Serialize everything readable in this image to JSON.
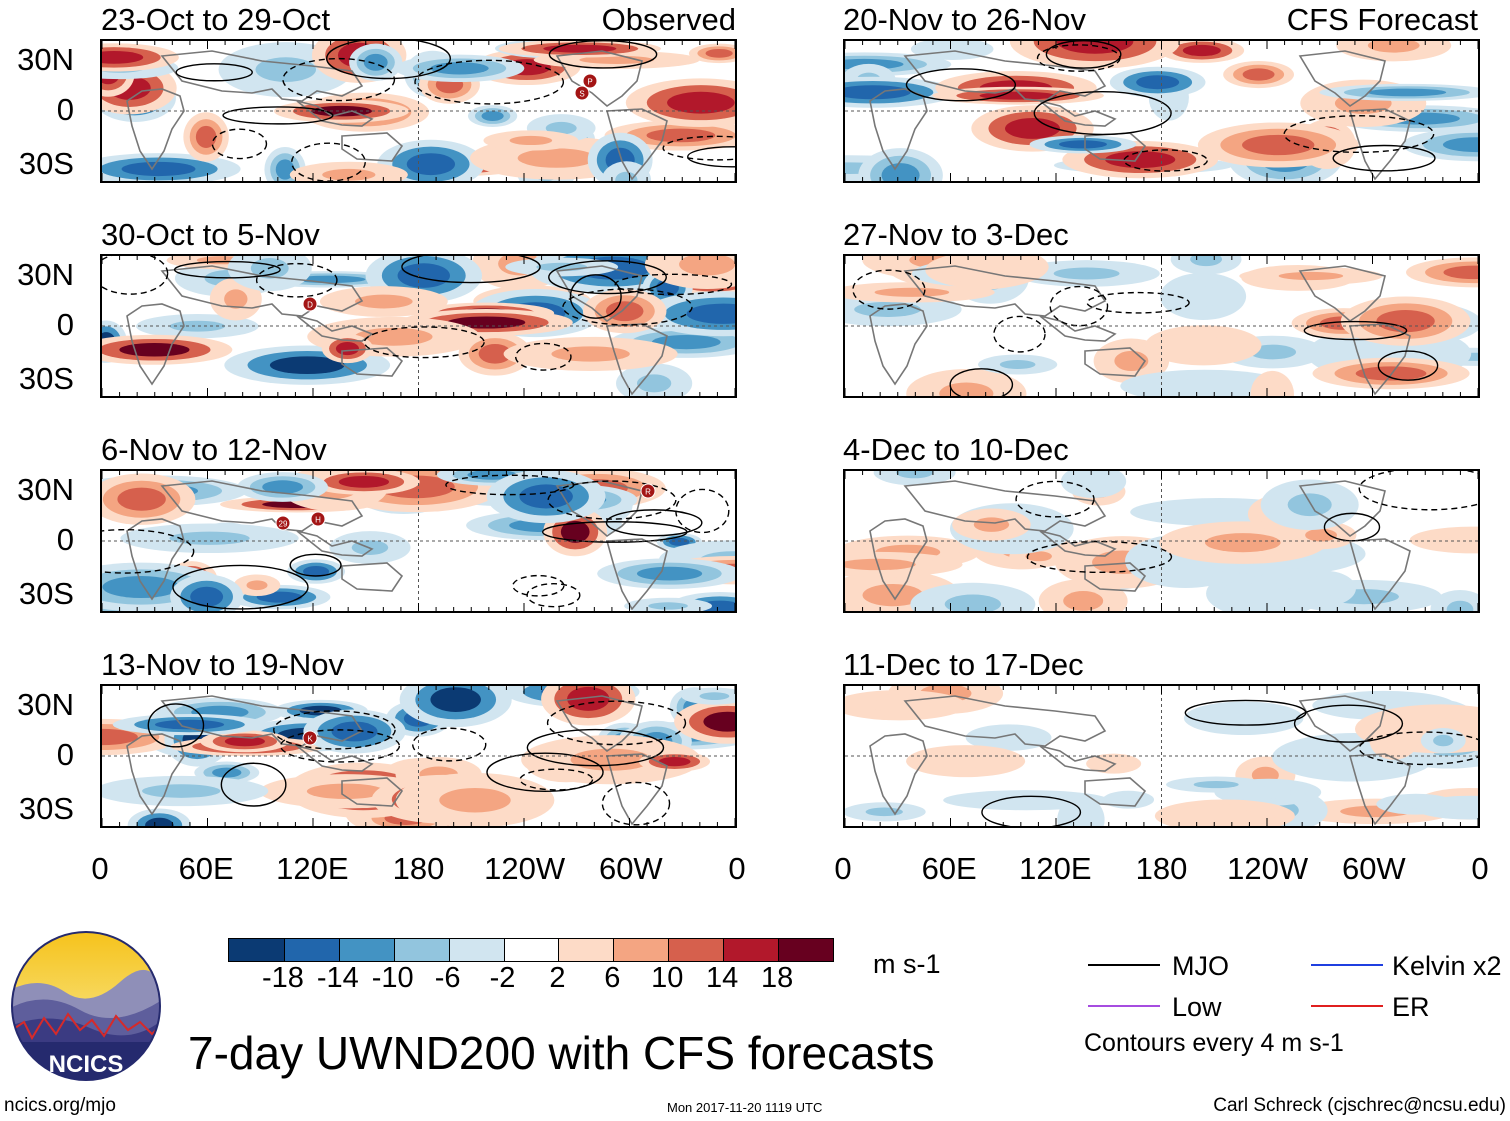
{
  "panels": [
    {
      "title": "23-Oct to 29-Oct",
      "label": "Observed",
      "storms": [
        "P",
        "S"
      ]
    },
    {
      "title": "30-Oct to 5-Nov",
      "label": "",
      "storms": [
        "D"
      ]
    },
    {
      "title": "6-Nov to 12-Nov",
      "label": "",
      "storms": [
        "R",
        "H",
        "29"
      ]
    },
    {
      "title": "13-Nov to 19-Nov",
      "label": "",
      "storms": [
        "K"
      ]
    },
    {
      "title": "20-Nov to 26-Nov",
      "label": "CFS Forecast",
      "storms": []
    },
    {
      "title": "27-Nov to 3-Dec",
      "label": "",
      "storms": []
    },
    {
      "title": "4-Dec to 10-Dec",
      "label": "",
      "storms": []
    },
    {
      "title": "11-Dec to 17-Dec",
      "label": "",
      "storms": []
    }
  ],
  "chart_data": {
    "type": "heatmap",
    "title": "7-day UWND200 with CFS forecasts",
    "variable": "200-hPa zonal wind anomaly",
    "units": "m s-1",
    "y_ticks": [
      "30N",
      "0",
      "30S"
    ],
    "x_ticks": [
      "0",
      "60E",
      "120E",
      "180",
      "120W",
      "60W",
      "0"
    ],
    "colorbar": {
      "ticks": [
        "-18",
        "-14",
        "-10",
        "-6",
        "-2",
        "2",
        "6",
        "10",
        "14",
        "18"
      ],
      "colors": [
        "#0b3a73",
        "#2166ac",
        "#4393c3",
        "#92c5de",
        "#d1e5f0",
        "#ffffff",
        "#fddbc7",
        "#f4a582",
        "#d6604d",
        "#b2182b",
        "#67001f"
      ]
    },
    "legend": [
      {
        "name": "MJO",
        "color": "#000000"
      },
      {
        "name": "Kelvin x2",
        "color": "#1f3fe0"
      },
      {
        "name": "Low",
        "color": "#a64ce0"
      },
      {
        "name": "ER",
        "color": "#e01f1f"
      }
    ],
    "contour_note": "Contours every 4 m s-1"
  },
  "logo": {
    "text": "NCICS"
  },
  "footer": {
    "url": "ncics.org/mjo",
    "timestamp": "Mon 2017-11-20 1119 UTC",
    "author": "Carl Schreck (cjschrec@ncsu.edu)"
  }
}
